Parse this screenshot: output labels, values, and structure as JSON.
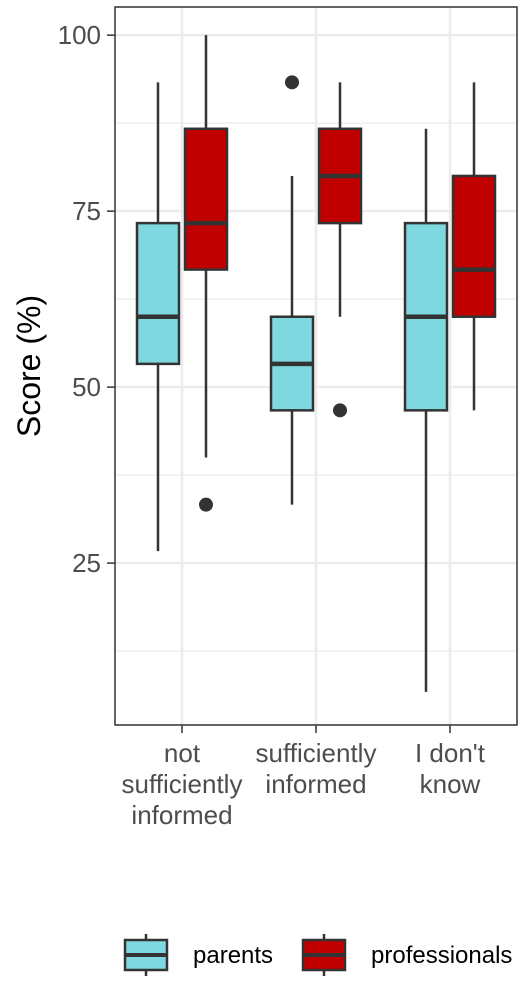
{
  "chart_data": {
    "type": "boxplot",
    "ylabel": "Score (%)",
    "xlabel": "",
    "ylim": [
      2,
      104
    ],
    "yticks": [
      25,
      50,
      75,
      100
    ],
    "grid": true,
    "legend_position": "bottom",
    "categories": [
      [
        "not",
        "sufficiently",
        "informed"
      ],
      [
        "sufficiently",
        "informed"
      ],
      [
        "I don't",
        "know"
      ]
    ],
    "series": [
      {
        "name": "parents",
        "color": "#7fd8e0",
        "boxes": [
          {
            "whisker_low": 26.7,
            "q1": 53.3,
            "median": 60,
            "q3": 73.3,
            "whisker_high": 93.3,
            "outliers": []
          },
          {
            "whisker_low": 33.3,
            "q1": 46.7,
            "median": 53.3,
            "q3": 60,
            "whisker_high": 80,
            "outliers": [
              93.3
            ]
          },
          {
            "whisker_low": 6.7,
            "q1": 46.7,
            "median": 60,
            "q3": 73.3,
            "whisker_high": 86.7,
            "outliers": []
          }
        ]
      },
      {
        "name": "professionals",
        "color": "#c00000",
        "boxes": [
          {
            "whisker_low": 40,
            "q1": 66.7,
            "median": 73.3,
            "q3": 86.7,
            "whisker_high": 100,
            "outliers": [
              33.3
            ]
          },
          {
            "whisker_low": 60,
            "q1": 73.3,
            "median": 80,
            "q3": 86.7,
            "whisker_high": 93.3,
            "outliers": [
              46.7
            ]
          },
          {
            "whisker_low": 46.7,
            "q1": 60,
            "median": 66.7,
            "q3": 80,
            "whisker_high": 93.3,
            "outliers": []
          }
        ]
      }
    ]
  }
}
